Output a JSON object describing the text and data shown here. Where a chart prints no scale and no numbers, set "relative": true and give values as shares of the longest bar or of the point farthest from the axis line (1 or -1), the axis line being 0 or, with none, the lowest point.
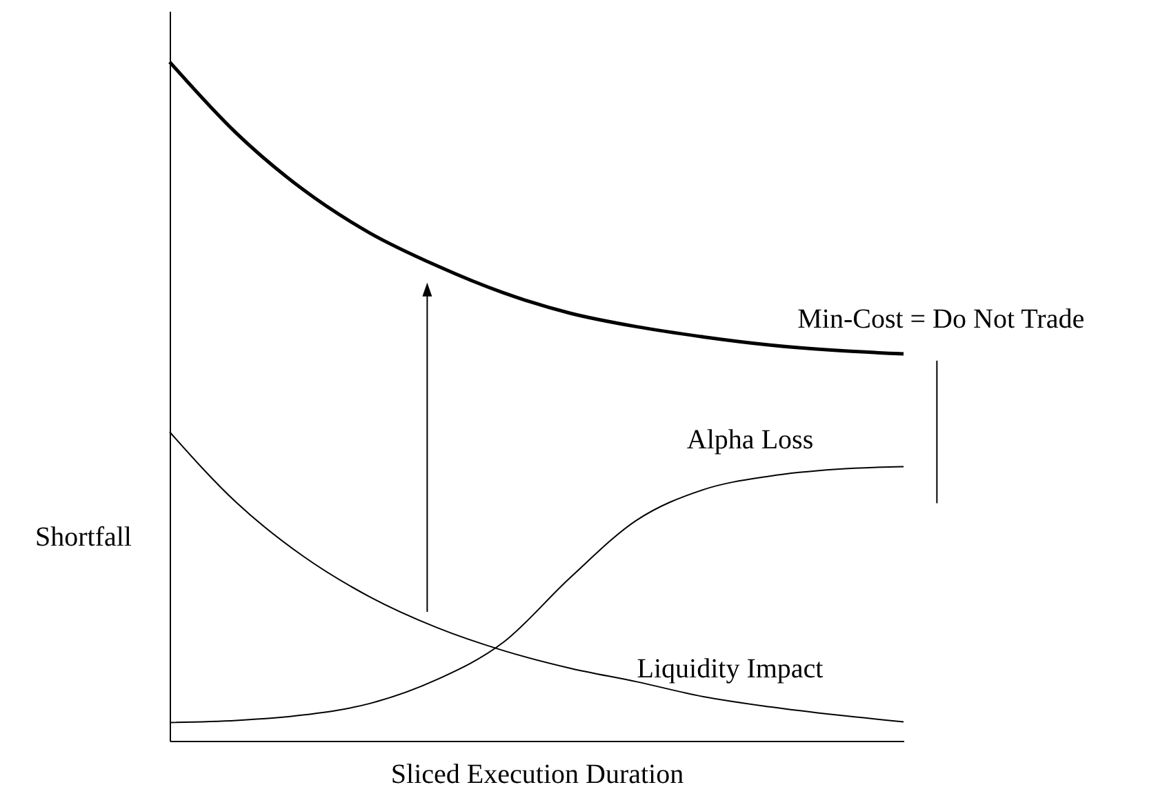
{
  "chart_data": {
    "type": "line",
    "relative": true,
    "xlabel": "Sliced Execution Duration",
    "ylabel": "Shortfall",
    "categories": [
      null,
      null,
      null,
      null,
      null,
      null,
      null,
      null,
      null,
      null,
      null,
      null
    ],
    "tick_labels": false,
    "legend": false,
    "grid": false,
    "marker": "none",
    "line_style": "solid",
    "series": [
      {
        "color": "#000000",
        "values": [
          1.0,
          0.895,
          0.812,
          0.748,
          0.7,
          0.66,
          0.63,
          0.61,
          0.595,
          0.583,
          0.575,
          0.57
        ]
      },
      {
        "name": "Alpha Loss",
        "color": "#000000",
        "values": [
          0.027,
          0.03,
          0.038,
          0.055,
          0.09,
          0.145,
          0.24,
          0.325,
          0.37,
          0.39,
          0.4,
          0.404
        ]
      },
      {
        "name": "Liquidity Impact",
        "color": "#000000",
        "values": [
          0.455,
          0.351,
          0.272,
          0.212,
          0.167,
          0.133,
          0.107,
          0.087,
          0.065,
          0.05,
          0.038,
          0.028
        ]
      }
    ],
    "annotations": [
      "Min-Cost = Do Not Trade"
    ]
  }
}
